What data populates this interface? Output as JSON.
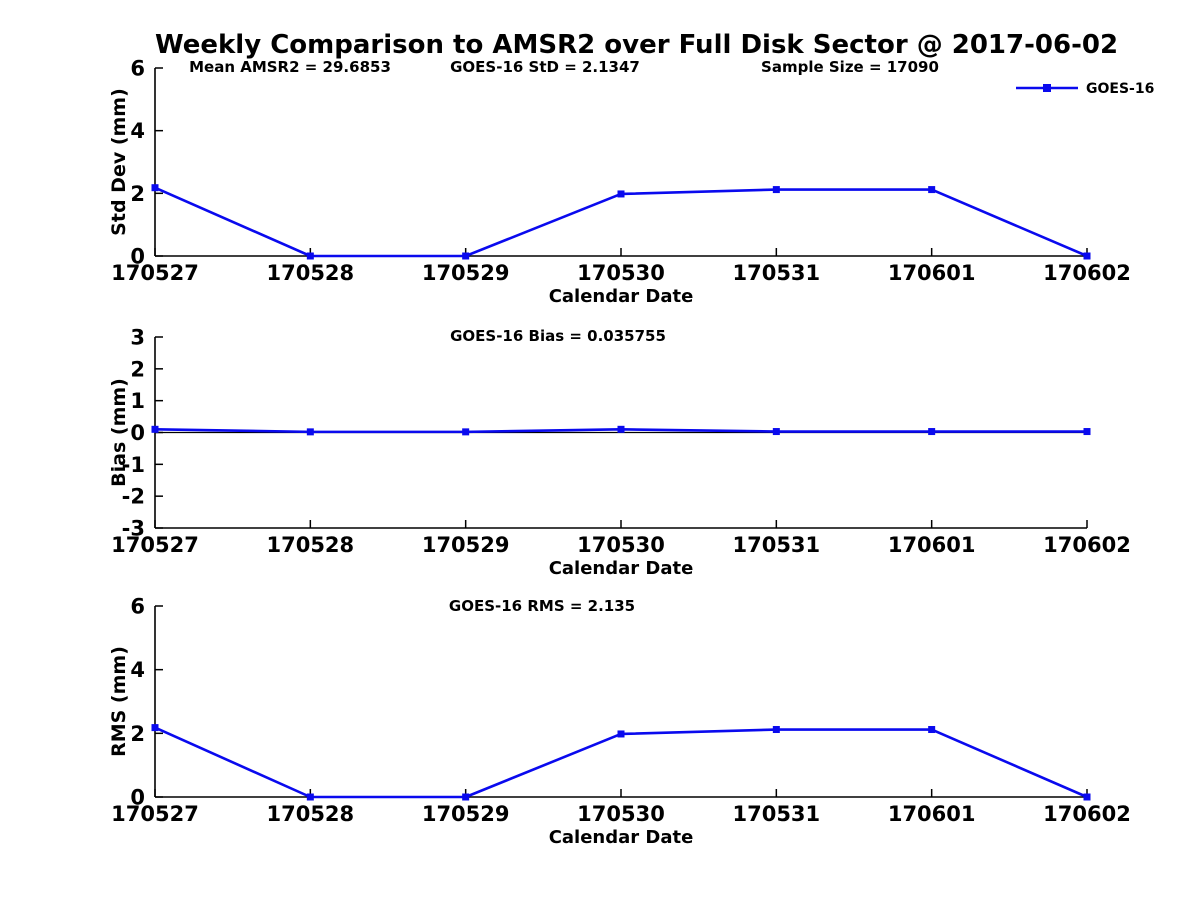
{
  "title": "Weekly Comparison to AMSR2 over Full Disk Sector @ 2017-06-02",
  "colors": {
    "series": "#0A0AEE",
    "axis": "#000000",
    "text": "#000000",
    "background": "#FFFFFF"
  },
  "legend": {
    "label": "GOES-16"
  },
  "chart_data": [
    {
      "type": "line",
      "panel": "std-dev",
      "ylabel": "Std Dev (mm)",
      "xlabel": "Calendar Date",
      "ylim": [
        0,
        6
      ],
      "yticks": [
        0,
        2,
        4,
        6
      ],
      "categories": [
        "170527",
        "170528",
        "170529",
        "170530",
        "170531",
        "170601",
        "170602"
      ],
      "annotations": [
        "Mean AMSR2 = 29.6853",
        "GOES-16 StD = 2.1347",
        "Sample Size = 17090"
      ],
      "legend_entries": [
        "GOES-16"
      ],
      "legend_position": "top-right",
      "grid": false,
      "series": [
        {
          "name": "GOES-16",
          "marker": "square",
          "values": [
            2.18,
            0,
            0,
            1.98,
            2.12,
            2.12,
            0
          ]
        }
      ]
    },
    {
      "type": "line",
      "panel": "bias",
      "ylabel": "Bias (mm)",
      "xlabel": "Calendar Date",
      "ylim": [
        -3,
        3
      ],
      "yticks": [
        -3,
        -2,
        -1,
        0,
        1,
        2,
        3
      ],
      "categories": [
        "170527",
        "170528",
        "170529",
        "170530",
        "170531",
        "170601",
        "170602"
      ],
      "annotations": [
        "GOES-16 Bias  = 0.035755"
      ],
      "zero_line": true,
      "grid": false,
      "series": [
        {
          "name": "GOES-16",
          "marker": "square",
          "values": [
            0.1,
            0.02,
            0.02,
            0.1,
            0.03,
            0.03,
            0.03
          ]
        }
      ]
    },
    {
      "type": "line",
      "panel": "rms",
      "ylabel": "RMS (mm)",
      "xlabel": "Calendar Date",
      "ylim": [
        0,
        6
      ],
      "yticks": [
        0,
        2,
        4,
        6
      ],
      "categories": [
        "170527",
        "170528",
        "170529",
        "170530",
        "170531",
        "170601",
        "170602"
      ],
      "annotations": [
        "GOES-16 RMS = 2.135"
      ],
      "grid": false,
      "series": [
        {
          "name": "GOES-16",
          "marker": "square",
          "values": [
            2.18,
            0,
            0,
            1.98,
            2.12,
            2.12,
            0
          ]
        }
      ]
    }
  ]
}
